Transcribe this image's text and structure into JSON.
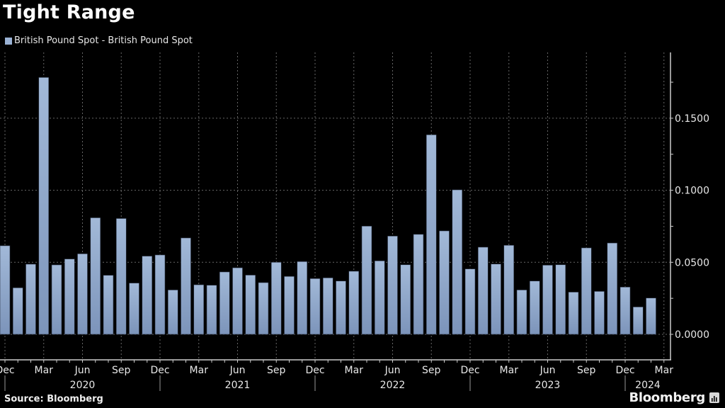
{
  "header": {
    "title": "Tight Range"
  },
  "legend": {
    "items": [
      {
        "label": "British Pound Spot - British Pound Spot",
        "color": "#9ab2d4"
      }
    ]
  },
  "footer": {
    "source": "Source: Bloomberg",
    "logo_text": "Bloomberg",
    "logo_icon": "bloomberg-chart-icon"
  },
  "chart_data": {
    "type": "bar",
    "title": "Tight Range",
    "xlabel": "",
    "ylabel": "",
    "ylim": [
      0,
      0.195
    ],
    "y_ticks": [
      "0.0000",
      "0.0500",
      "0.1000",
      "0.1500"
    ],
    "y_tick_values": [
      0,
      0.05,
      0.1,
      0.15
    ],
    "y_axis_side": "right",
    "grid": true,
    "legend_position": "top-left",
    "colors": {
      "bar_top": "#a2b9d8",
      "bar_bottom": "#7c94ba",
      "grid": "#666666",
      "axis": "#cccccc"
    },
    "categories": [
      "Dec 2019",
      "Jan 2020",
      "Feb 2020",
      "Mar 2020",
      "Apr 2020",
      "May 2020",
      "Jun 2020",
      "Jul 2020",
      "Aug 2020",
      "Sep 2020",
      "Oct 2020",
      "Nov 2020",
      "Dec 2020",
      "Jan 2021",
      "Feb 2021",
      "Mar 2021",
      "Apr 2021",
      "May 2021",
      "Jun 2021",
      "Jul 2021",
      "Aug 2021",
      "Sep 2021",
      "Oct 2021",
      "Nov 2021",
      "Dec 2021",
      "Jan 2022",
      "Feb 2022",
      "Mar 2022",
      "Apr 2022",
      "May 2022",
      "Jun 2022",
      "Jul 2022",
      "Aug 2022",
      "Sep 2022",
      "Oct 2022",
      "Nov 2022",
      "Dec 2022",
      "Jan 2023",
      "Feb 2023",
      "Mar 2023",
      "Apr 2023",
      "May 2023",
      "Jun 2023",
      "Jul 2023",
      "Aug 2023",
      "Sep 2023",
      "Oct 2023",
      "Nov 2023",
      "Dec 2023",
      "Jan 2024",
      "Feb 2024",
      "Mar 2024"
    ],
    "series": [
      {
        "name": "British Pound Spot - British Pound Spot",
        "values": [
          0.0615,
          0.0323,
          0.0487,
          0.1783,
          0.0482,
          0.0523,
          0.0559,
          0.0809,
          0.041,
          0.0804,
          0.0356,
          0.0543,
          0.0551,
          0.0308,
          0.0669,
          0.0344,
          0.0341,
          0.0433,
          0.0462,
          0.0411,
          0.0359,
          0.05,
          0.0402,
          0.0505,
          0.0387,
          0.0392,
          0.037,
          0.0438,
          0.0751,
          0.051,
          0.0682,
          0.0483,
          0.0694,
          0.1385,
          0.0718,
          0.1003,
          0.0454,
          0.0605,
          0.0488,
          0.0618,
          0.0308,
          0.037,
          0.048,
          0.0483,
          0.0293,
          0.06,
          0.0298,
          0.0634,
          0.0328,
          0.019,
          0.0252,
          null
        ]
      }
    ],
    "x_month_labels": [
      {
        "index": 0,
        "label": "Dec"
      },
      {
        "index": 3,
        "label": "Mar"
      },
      {
        "index": 6,
        "label": "Jun"
      },
      {
        "index": 9,
        "label": "Sep"
      },
      {
        "index": 12,
        "label": "Dec"
      },
      {
        "index": 15,
        "label": "Mar"
      },
      {
        "index": 18,
        "label": "Jun"
      },
      {
        "index": 21,
        "label": "Sep"
      },
      {
        "index": 24,
        "label": "Dec"
      },
      {
        "index": 27,
        "label": "Mar"
      },
      {
        "index": 30,
        "label": "Jun"
      },
      {
        "index": 33,
        "label": "Sep"
      },
      {
        "index": 36,
        "label": "Dec"
      },
      {
        "index": 39,
        "label": "Mar"
      },
      {
        "index": 42,
        "label": "Jun"
      },
      {
        "index": 45,
        "label": "Sep"
      },
      {
        "index": 48,
        "label": "Dec"
      },
      {
        "index": 51,
        "label": "Mar"
      }
    ],
    "x_year_labels": [
      {
        "label": "2020",
        "from": 0,
        "to": 12
      },
      {
        "label": "2021",
        "from": 12,
        "to": 24
      },
      {
        "label": "2022",
        "from": 24,
        "to": 36
      },
      {
        "label": "2023",
        "from": 36,
        "to": 48
      },
      {
        "label": "2024",
        "from": 48,
        "to": 51
      }
    ]
  }
}
